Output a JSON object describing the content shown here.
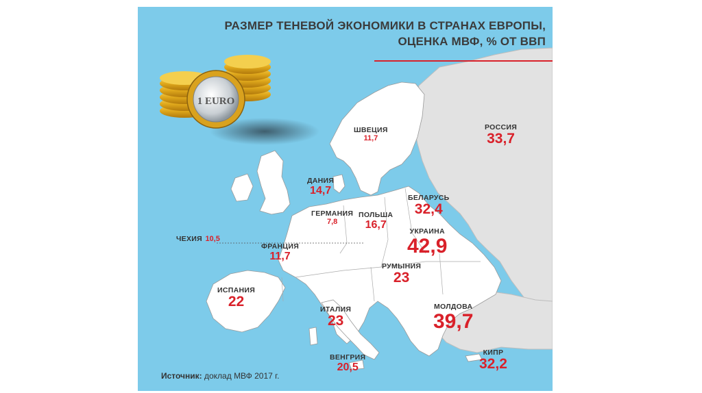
{
  "title": {
    "line1": "РАЗМЕР ТЕНЕВОЙ ЭКОНОМИКИ В СТРАНАХ ЕВРОПЫ,",
    "line2": "ОЦЕНКА МВФ, % ОТ ВВП"
  },
  "colors": {
    "sea": "#7dcbea",
    "land": "#ffffff",
    "other_land": "#e2e2e2",
    "accent": "#d9212a",
    "text": "#333333"
  },
  "coins_icon": "euro-coin-stack",
  "coin_text": "1 EURO",
  "countries": [
    {
      "id": "sweden",
      "name": "ШВЕЦИЯ",
      "value": "11,7"
    },
    {
      "id": "russia",
      "name": "РОССИЯ",
      "value": "33,7"
    },
    {
      "id": "denmark",
      "name": "ДАНИЯ",
      "value": "14,7"
    },
    {
      "id": "belarus",
      "name": "БЕЛАРУСЬ",
      "value": "32,4"
    },
    {
      "id": "germany",
      "name": "ГЕРМАНИЯ",
      "value": "7,8"
    },
    {
      "id": "poland",
      "name": "ПОЛЬША",
      "value": "16,7"
    },
    {
      "id": "ukraine",
      "name": "УКРАИНА",
      "value": "42,9"
    },
    {
      "id": "czechia",
      "name": "ЧЕХИЯ",
      "value": "10,5"
    },
    {
      "id": "france",
      "name": "ФРАНЦИЯ",
      "value": "11,7"
    },
    {
      "id": "romania",
      "name": "РУМЫНИЯ",
      "value": "23"
    },
    {
      "id": "spain",
      "name": "ИСПАНИЯ",
      "value": "22"
    },
    {
      "id": "italy",
      "name": "ИТАЛИЯ",
      "value": "23"
    },
    {
      "id": "moldova",
      "name": "МОЛДОВА",
      "value": "39,7"
    },
    {
      "id": "hungary",
      "name": "ВЕНГРИЯ",
      "value": "20,5"
    },
    {
      "id": "cyprus",
      "name": "КИПР",
      "value": "32,2"
    }
  ],
  "source": {
    "label": "Источник:",
    "text": " доклад МВФ 2017 г."
  }
}
